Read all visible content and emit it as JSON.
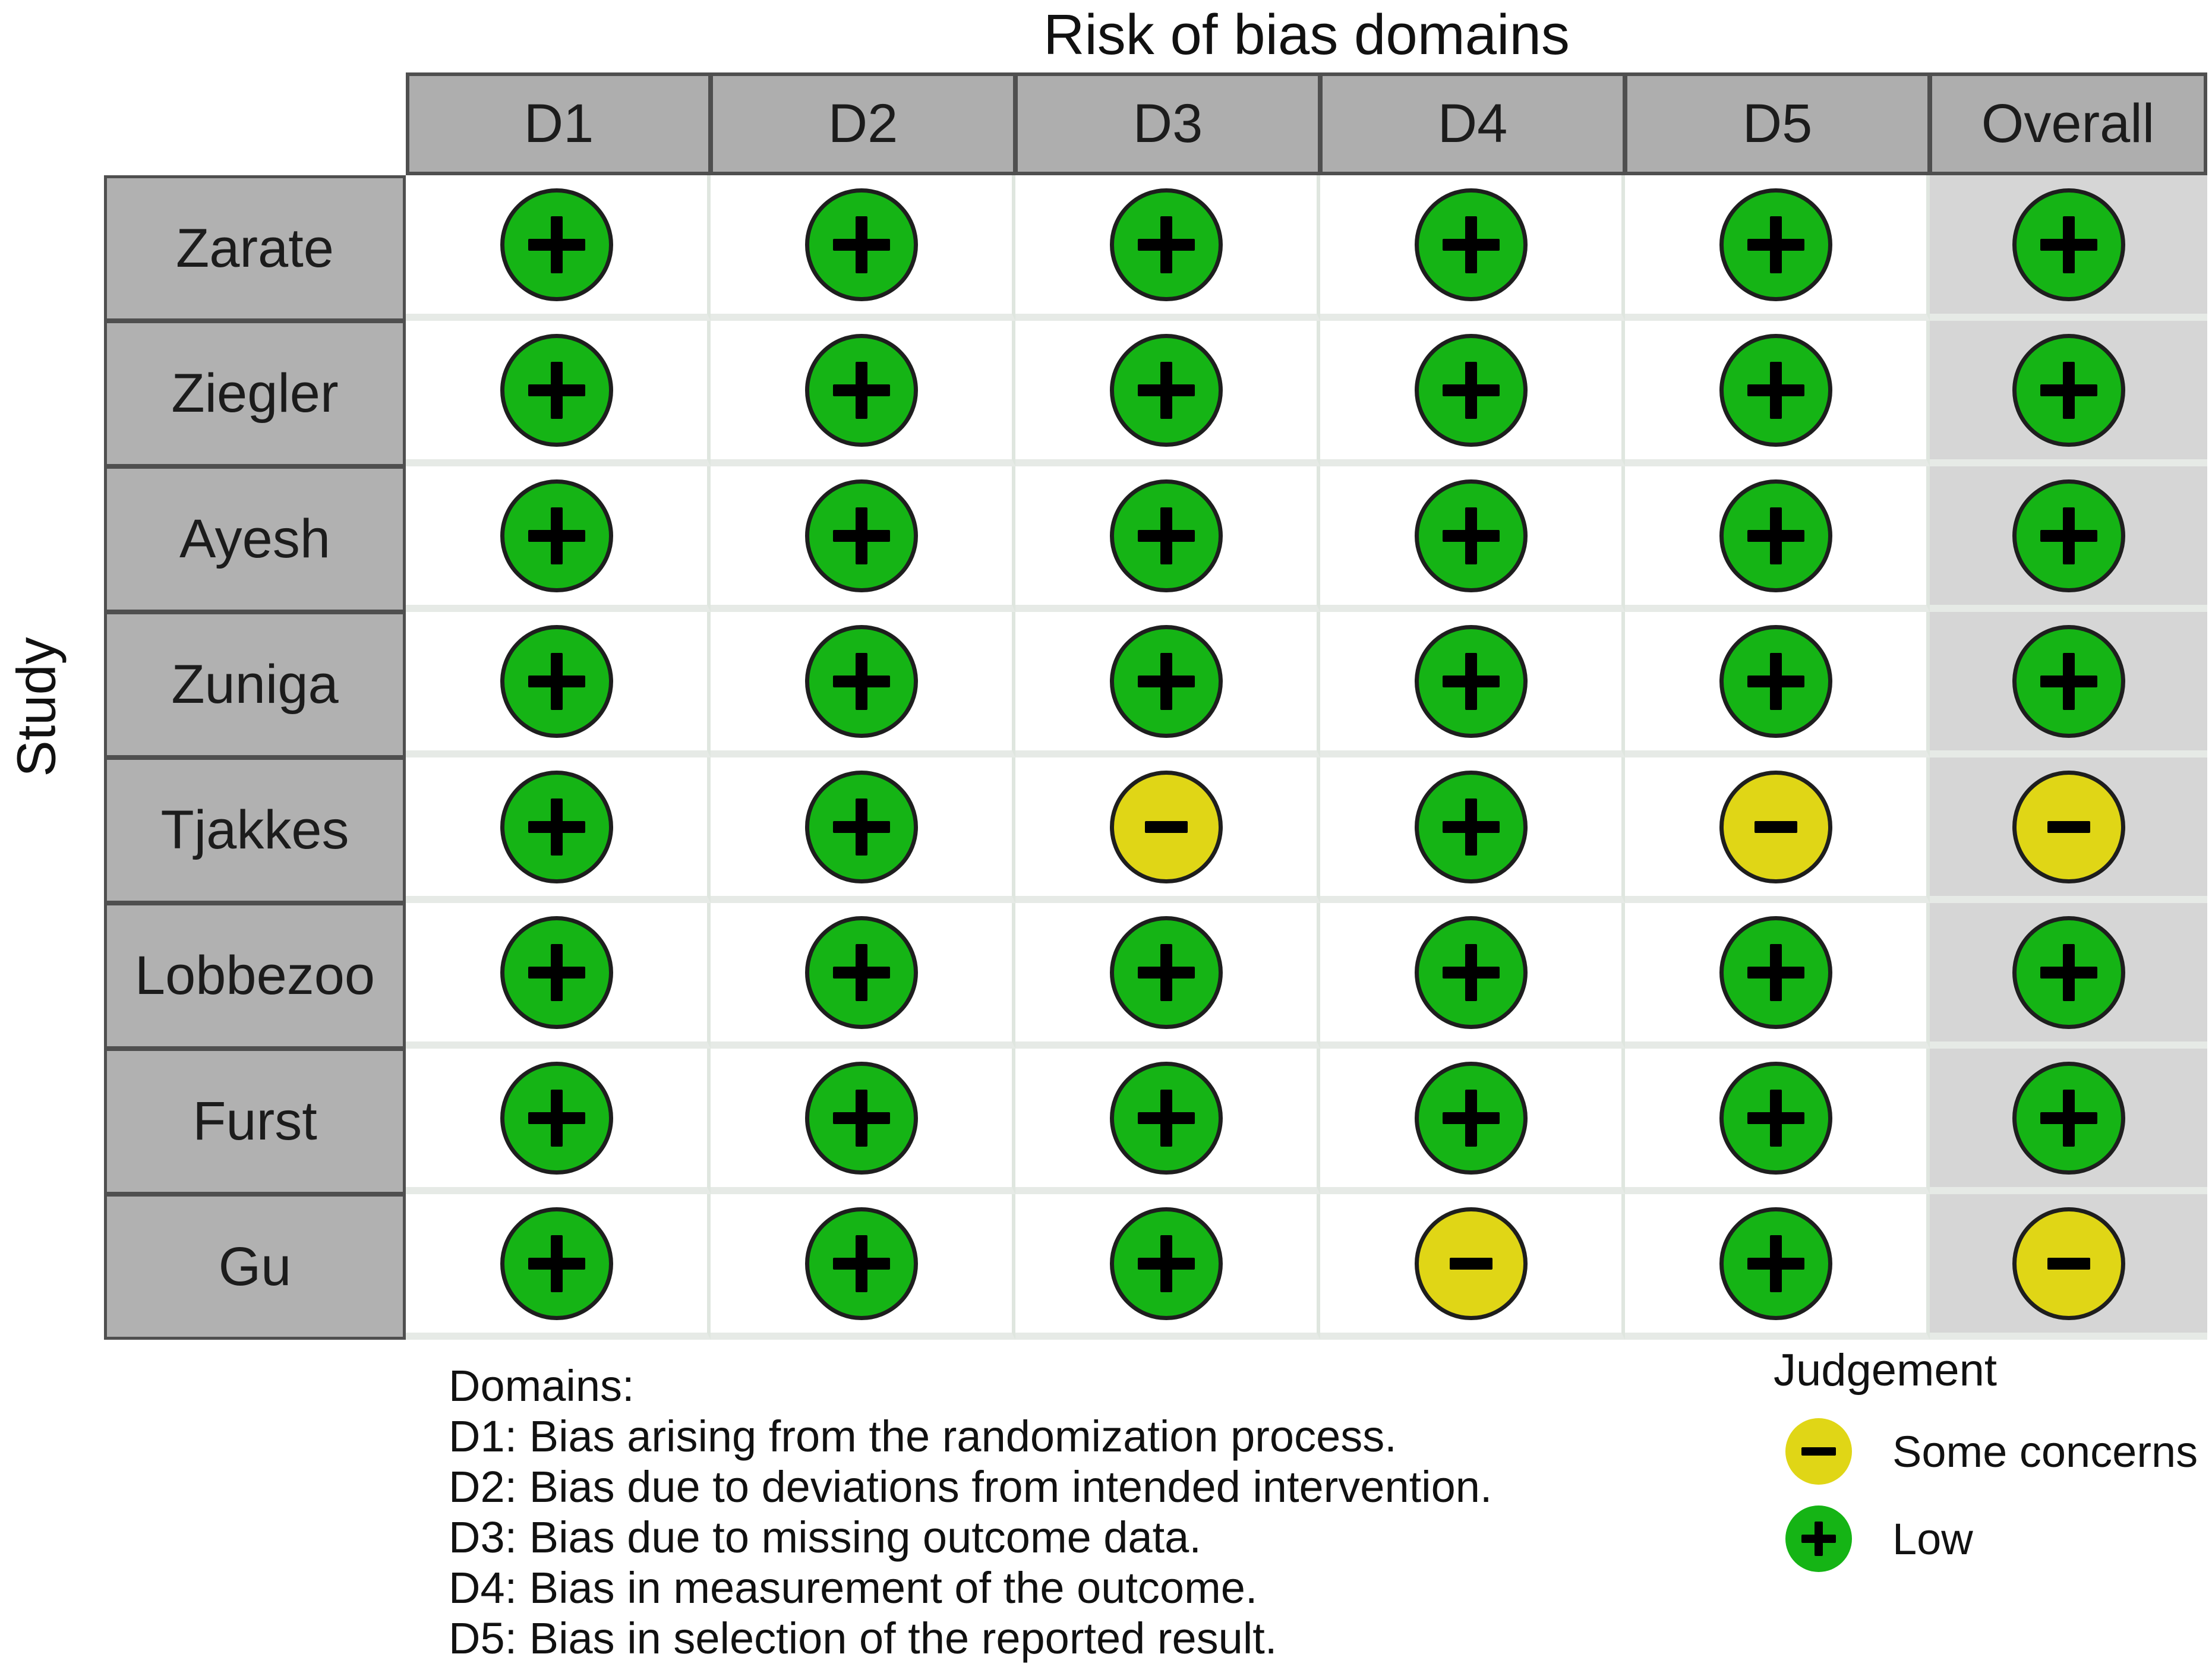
{
  "title": "Risk of bias domains",
  "axis_label": "Study",
  "table": {
    "columns": [
      "D1",
      "D2",
      "D3",
      "D4",
      "D5",
      "Overall"
    ],
    "studies": [
      "Zarate",
      "Ziegler",
      "Ayesh",
      "Zuniga",
      "Tjakkes",
      "Lobbezoo",
      "Furst",
      "Gu"
    ],
    "judgements": [
      [
        "low",
        "low",
        "low",
        "low",
        "low",
        "low"
      ],
      [
        "low",
        "low",
        "low",
        "low",
        "low",
        "low"
      ],
      [
        "low",
        "low",
        "low",
        "low",
        "low",
        "low"
      ],
      [
        "low",
        "low",
        "low",
        "low",
        "low",
        "low"
      ],
      [
        "low",
        "low",
        "some_concerns",
        "low",
        "some_concerns",
        "some_concerns"
      ],
      [
        "low",
        "low",
        "low",
        "low",
        "low",
        "low"
      ],
      [
        "low",
        "low",
        "low",
        "low",
        "low",
        "low"
      ],
      [
        "low",
        "low",
        "low",
        "some_concerns",
        "low",
        "some_concerns"
      ]
    ]
  },
  "footer": {
    "heading": "Domains:",
    "items": [
      "D1: Bias arising from the randomization process.",
      "D2: Bias due to deviations from intended intervention.",
      "D3: Bias due to missing outcome data.",
      "D4: Bias in measurement of the outcome.",
      "D5: Bias in selection of the reported result."
    ]
  },
  "legend": {
    "title": "Judgement",
    "items": [
      {
        "key": "some_concerns",
        "symbol": "-",
        "label": "Some concerns",
        "color": "#e0d616"
      },
      {
        "key": "low",
        "symbol": "+",
        "label": "Low",
        "color": "#15b415"
      }
    ]
  },
  "colors": {
    "low": "#15b415",
    "some_concerns": "#e0d616",
    "circle_outline": "#1e1e1e",
    "header_bg": "#aeaeae",
    "header_border": "#4f4f4f",
    "label_bg": "#b1b1b1",
    "overall_bg": "#d6d6d6",
    "grid_line": "#dfe6df",
    "row_band": "#e6eae6"
  },
  "chart_data": {
    "type": "table",
    "title": "Risk of bias domains",
    "y_label": "Study",
    "columns": [
      "D1",
      "D2",
      "D3",
      "D4",
      "D5",
      "Overall"
    ],
    "rows": [
      {
        "study": "Zarate",
        "values": [
          "Low",
          "Low",
          "Low",
          "Low",
          "Low",
          "Low"
        ]
      },
      {
        "study": "Ziegler",
        "values": [
          "Low",
          "Low",
          "Low",
          "Low",
          "Low",
          "Low"
        ]
      },
      {
        "study": "Ayesh",
        "values": [
          "Low",
          "Low",
          "Low",
          "Low",
          "Low",
          "Low"
        ]
      },
      {
        "study": "Zuniga",
        "values": [
          "Low",
          "Low",
          "Low",
          "Low",
          "Low",
          "Low"
        ]
      },
      {
        "study": "Tjakkes",
        "values": [
          "Low",
          "Low",
          "Some concerns",
          "Low",
          "Some concerns",
          "Some concerns"
        ]
      },
      {
        "study": "Lobbezoo",
        "values": [
          "Low",
          "Low",
          "Low",
          "Low",
          "Low",
          "Low"
        ]
      },
      {
        "study": "Furst",
        "values": [
          "Low",
          "Low",
          "Low",
          "Low",
          "Low",
          "Low"
        ]
      },
      {
        "study": "Gu",
        "values": [
          "Low",
          "Low",
          "Low",
          "Some concerns",
          "Low",
          "Some concerns"
        ]
      }
    ],
    "legend": {
      "+": "Low",
      "-": "Some concerns"
    },
    "domain_definitions": [
      "D1: Bias arising from the randomization process.",
      "D2: Bias due to deviations from intended intervention.",
      "D3: Bias due to missing outcome data.",
      "D4: Bias in measurement of the outcome.",
      "D5: Bias in selection of the reported result."
    ]
  }
}
